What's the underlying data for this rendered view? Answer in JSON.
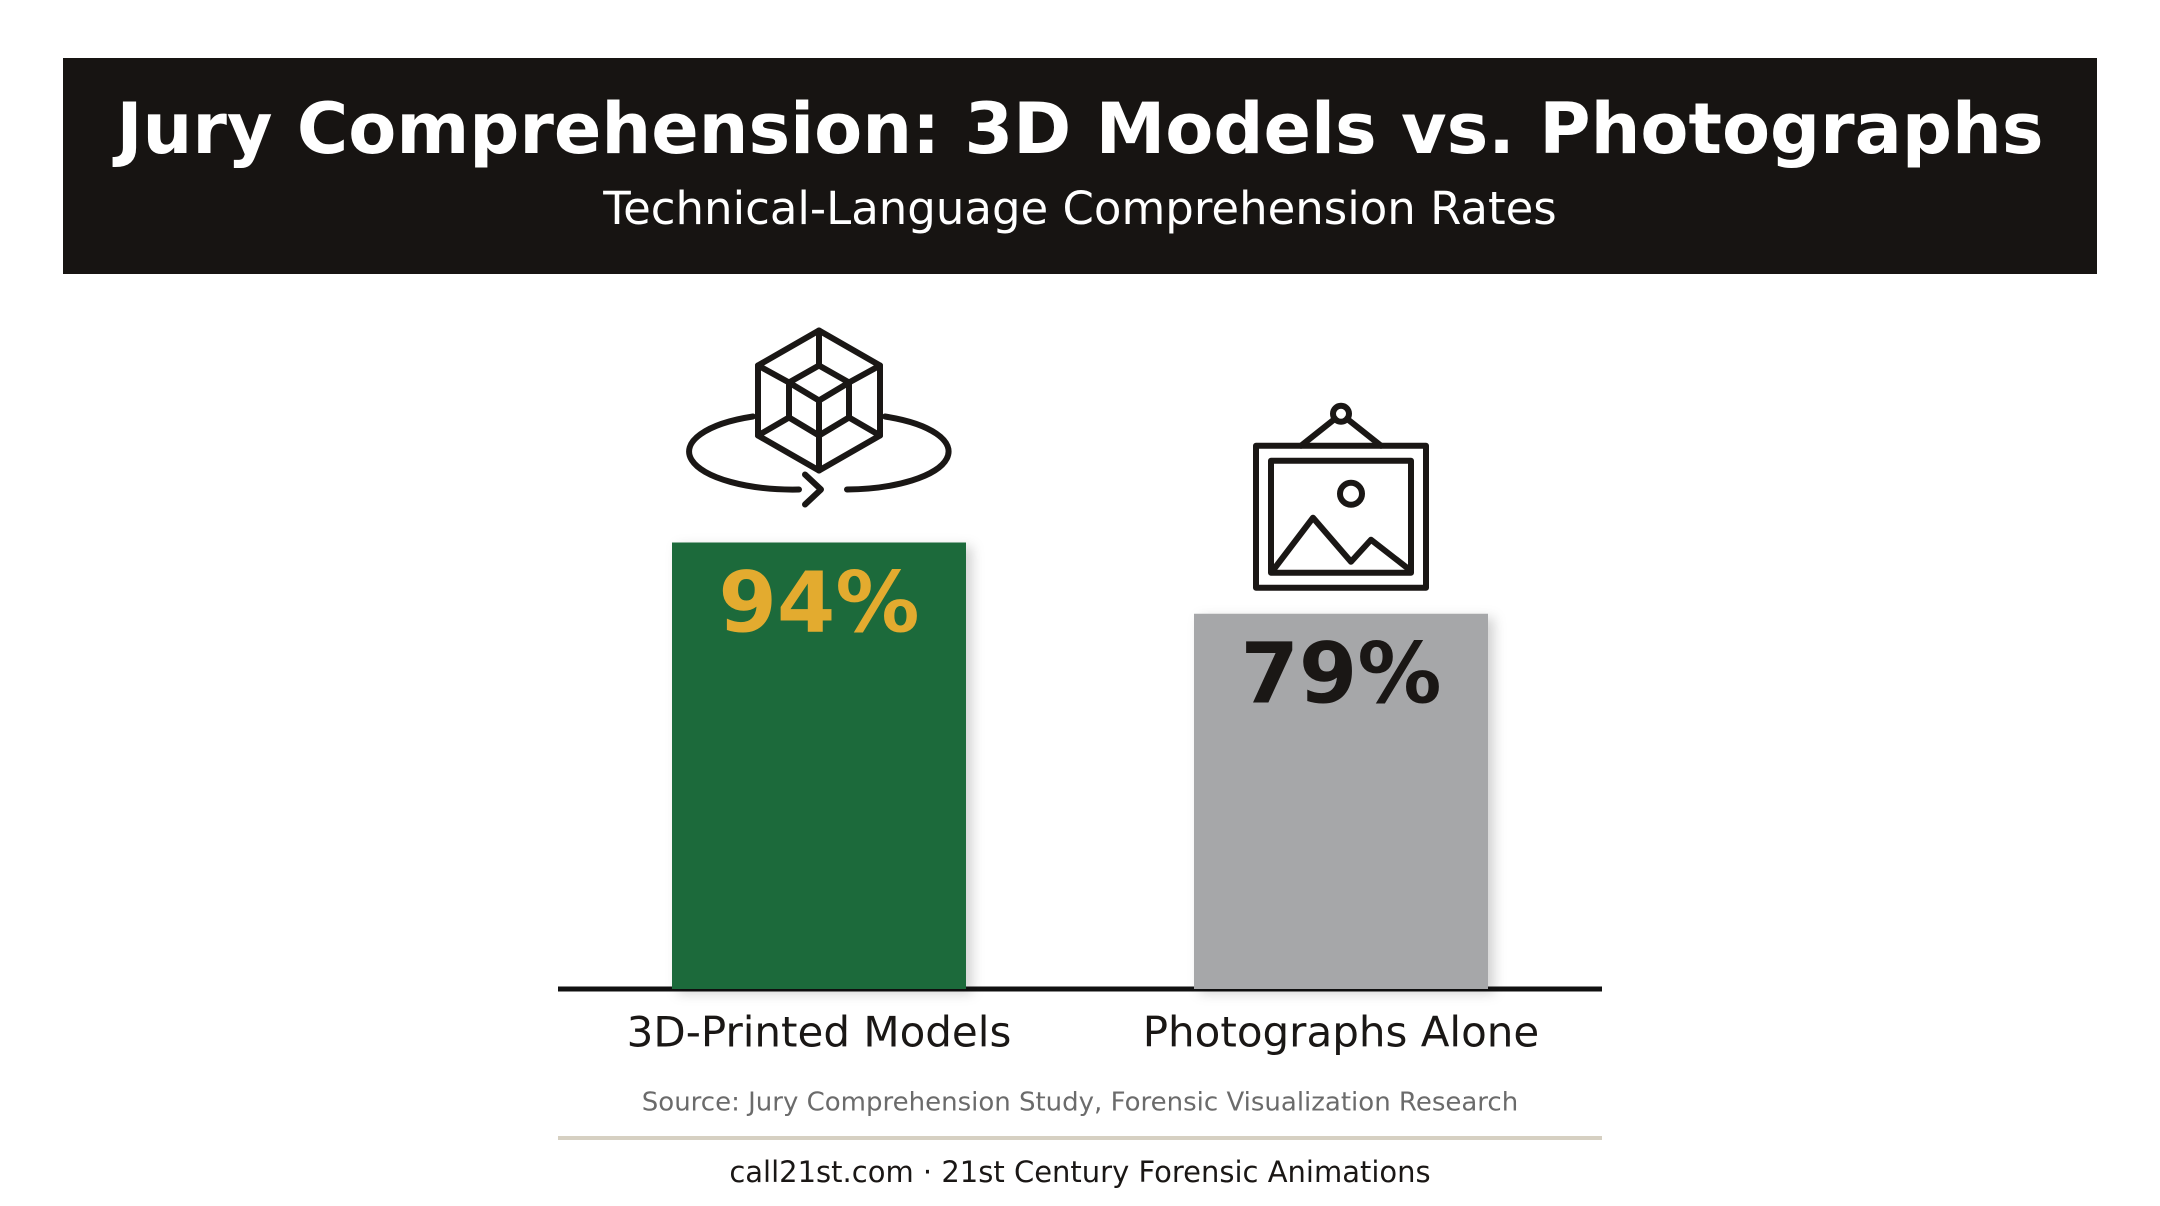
{
  "chart_data": {
    "type": "bar",
    "title": "Jury Comprehension: 3D Models vs. Photographs",
    "subtitle": "Technical-Language Comprehension Rates",
    "categories": [
      "3D-Printed Models",
      "Photographs Alone"
    ],
    "values": [
      94,
      79
    ],
    "value_labels": [
      "94%",
      "79%"
    ],
    "colors": [
      "#1e6a3b",
      "#a6a7a9"
    ],
    "label_colors": [
      "#e3ab2f",
      "#1a1715"
    ],
    "ylim": [
      0,
      100
    ],
    "source": "Source: Jury Comprehension Study, Forensic Visualization Research",
    "footer": "call21st.com · 21st Century Forensic Animations"
  }
}
